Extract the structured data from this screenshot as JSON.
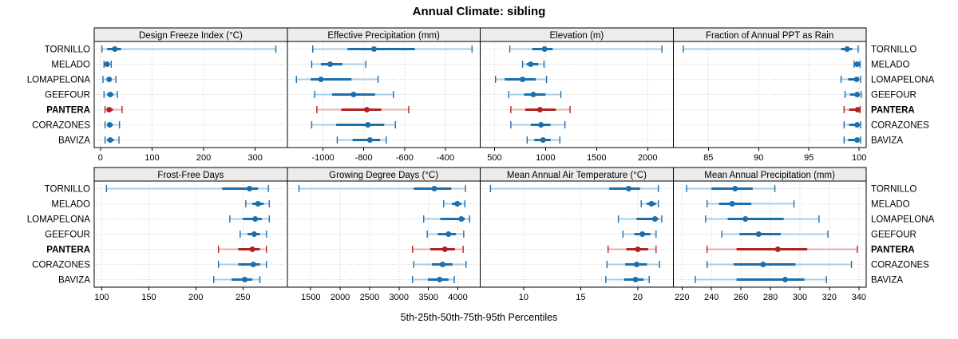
{
  "title": "Annual Climate: sibling",
  "caption": "5th-25th-50th-75th-95th Percentiles",
  "colors": {
    "normal": "#1c6fad",
    "normal_light": "#a9cde5",
    "highlight": "#b22222",
    "highlight_light": "#e3b2ae",
    "grid": "#c9c9c9",
    "header_bg": "#ececec",
    "border": "#000000",
    "background": "#ffffff"
  },
  "sites": [
    {
      "name": "TORNILLO",
      "highlight": false
    },
    {
      "name": "MELADO",
      "highlight": false
    },
    {
      "name": "LOMAPELONA",
      "highlight": false
    },
    {
      "name": "GEEFOUR",
      "highlight": false
    },
    {
      "name": "PANTERA",
      "highlight": true
    },
    {
      "name": "CORAZONES",
      "highlight": false
    },
    {
      "name": "BAVIZA",
      "highlight": false
    }
  ],
  "percentile_labels": [
    "5th",
    "25th",
    "50th",
    "75th",
    "95th"
  ],
  "chart_data": [
    {
      "type": "interval-dotplot",
      "title": "Design Freeze Index (°C)",
      "row": 0,
      "col": 0,
      "xlim": [
        -12,
        362
      ],
      "ticks": [
        0,
        100,
        200,
        300
      ],
      "categories": [
        "TORNILLO",
        "MELADO",
        "LOMAPELONA",
        "GEEFOUR",
        "PANTERA",
        "CORAZONES",
        "BAVIZA"
      ],
      "values": [
        [
          3,
          13,
          28,
          40,
          340
        ],
        [
          7,
          10,
          13,
          17,
          21
        ],
        [
          5,
          12,
          17,
          22,
          30
        ],
        [
          7,
          13,
          19,
          25,
          33
        ],
        [
          9,
          13,
          17,
          24,
          42
        ],
        [
          9,
          13,
          18,
          24,
          37
        ],
        [
          9,
          13,
          19,
          26,
          36
        ]
      ]
    },
    {
      "type": "interval-dotplot",
      "title": "Effective Precipitation (mm)",
      "row": 0,
      "col": 1,
      "xlim": [
        -1175,
        -230
      ],
      "ticks": [
        -1000,
        -800,
        -600,
        -400
      ],
      "categories": [
        "TORNILLO",
        "MELADO",
        "LOMAPELONA",
        "GEEFOUR",
        "PANTERA",
        "CORAZONES",
        "BAVIZA"
      ],
      "values": [
        [
          -1050,
          -880,
          -750,
          -550,
          -270
        ],
        [
          -1055,
          -1010,
          -965,
          -905,
          -790
        ],
        [
          -1130,
          -1060,
          -1010,
          -860,
          -730
        ],
        [
          -1040,
          -955,
          -850,
          -745,
          -655
        ],
        [
          -1030,
          -910,
          -785,
          -715,
          -580
        ],
        [
          -1055,
          -935,
          -780,
          -700,
          -645
        ],
        [
          -930,
          -855,
          -770,
          -720,
          -690
        ]
      ]
    },
    {
      "type": "interval-dotplot",
      "title": "Elevation (m)",
      "row": 0,
      "col": 2,
      "xlim": [
        360,
        2250
      ],
      "ticks": [
        500,
        1000,
        1500,
        2000
      ],
      "categories": [
        "TORNILLO",
        "MELADO",
        "LOMAPELONA",
        "GEEFOUR",
        "PANTERA",
        "CORAZONES",
        "BAVIZA"
      ],
      "values": [
        [
          650,
          870,
          990,
          1070,
          2140
        ],
        [
          775,
          815,
          855,
          930,
          985
        ],
        [
          510,
          600,
          775,
          905,
          1010
        ],
        [
          640,
          790,
          880,
          1000,
          1150
        ],
        [
          660,
          800,
          945,
          1100,
          1240
        ],
        [
          660,
          855,
          955,
          1050,
          1190
        ],
        [
          820,
          890,
          975,
          1050,
          1140
        ]
      ]
    },
    {
      "type": "interval-dotplot",
      "title": "Fraction of Annual PPT as Rain",
      "row": 0,
      "col": 3,
      "xlim": [
        81.5,
        100.7
      ],
      "ticks": [
        85,
        90,
        95,
        100
      ],
      "categories": [
        "TORNILLO",
        "MELADO",
        "LOMAPELONA",
        "GEEFOUR",
        "PANTERA",
        "CORAZONES",
        "BAVIZA"
      ],
      "values": [
        [
          82.5,
          98.2,
          98.8,
          99.3,
          99.9
        ],
        [
          99.5,
          99.65,
          99.8,
          99.95,
          100.1
        ],
        [
          98.2,
          98.9,
          99.75,
          99.95,
          100.15
        ],
        [
          98.6,
          99.1,
          99.8,
          100.0,
          100.2
        ],
        [
          98.5,
          99.0,
          99.85,
          100.0,
          100.1
        ],
        [
          98.5,
          99.0,
          99.8,
          100.0,
          100.15
        ],
        [
          98.5,
          98.9,
          99.8,
          100.0,
          100.15
        ]
      ]
    },
    {
      "type": "interval-dotplot",
      "title": "Frost-Free Days",
      "row": 1,
      "col": 0,
      "xlim": [
        92,
        297
      ],
      "ticks": [
        100,
        150,
        200,
        250
      ],
      "categories": [
        "TORNILLO",
        "MELADO",
        "LOMAPELONA",
        "GEEFOUR",
        "PANTERA",
        "CORAZONES",
        "BAVIZA"
      ],
      "values": [
        [
          105,
          228,
          257,
          266,
          277
        ],
        [
          253,
          260,
          266,
          272,
          278
        ],
        [
          236,
          250,
          263,
          270,
          278
        ],
        [
          247,
          255,
          262,
          268,
          275
        ],
        [
          224,
          245,
          260,
          268,
          275
        ],
        [
          224,
          245,
          261,
          268,
          275
        ],
        [
          219,
          238,
          252,
          260,
          268
        ]
      ]
    },
    {
      "type": "interval-dotplot",
      "title": "Growing Degree Days (°C)",
      "row": 1,
      "col": 1,
      "xlim": [
        1100,
        4380
      ],
      "ticks": [
        1500,
        2000,
        2500,
        3000,
        3500,
        4000
      ],
      "categories": [
        "TORNILLO",
        "MELADO",
        "LOMAPELONA",
        "GEEFOUR",
        "PANTERA",
        "CORAZONES",
        "BAVIZA"
      ],
      "values": [
        [
          1300,
          3250,
          3600,
          3890,
          4130
        ],
        [
          3760,
          3900,
          3990,
          4060,
          4120
        ],
        [
          3420,
          3700,
          4060,
          4120,
          4200
        ],
        [
          3480,
          3660,
          3840,
          3970,
          4100
        ],
        [
          3230,
          3530,
          3780,
          3950,
          4090
        ],
        [
          3250,
          3560,
          3740,
          3910,
          4140
        ],
        [
          3230,
          3490,
          3690,
          3840,
          3940
        ]
      ]
    },
    {
      "type": "interval-dotplot",
      "title": "Mean Annual Air Temperature (°C)",
      "row": 1,
      "col": 2,
      "xlim": [
        6.2,
        23.1
      ],
      "ticks": [
        10,
        15,
        20
      ],
      "categories": [
        "TORNILLO",
        "MELADO",
        "LOMAPELONA",
        "GEEFOUR",
        "PANTERA",
        "CORAZONES",
        "BAVIZA"
      ],
      "values": [
        [
          7.1,
          17.5,
          19.2,
          20.2,
          21.8
        ],
        [
          20.3,
          20.8,
          21.2,
          21.6,
          21.8
        ],
        [
          18.3,
          19.9,
          21.5,
          21.8,
          22.1
        ],
        [
          18.7,
          19.7,
          20.4,
          21.1,
          21.6
        ],
        [
          17.4,
          19.0,
          20.0,
          20.9,
          21.6
        ],
        [
          17.3,
          18.9,
          19.9,
          20.8,
          21.9
        ],
        [
          17.2,
          18.8,
          19.8,
          20.5,
          21.0
        ]
      ]
    },
    {
      "type": "interval-dotplot",
      "title": "Mean Annual Precipitation (mm)",
      "row": 1,
      "col": 3,
      "xlim": [
        214,
        345
      ],
      "ticks": [
        220,
        240,
        260,
        280,
        300,
        320,
        340
      ],
      "categories": [
        "TORNILLO",
        "MELADO",
        "LOMAPELONA",
        "GEEFOUR",
        "PANTERA",
        "CORAZONES",
        "BAVIZA"
      ],
      "values": [
        [
          223,
          240,
          256,
          268,
          283
        ],
        [
          237,
          245,
          254,
          267,
          296
        ],
        [
          236,
          251,
          263,
          289,
          313
        ],
        [
          247,
          259,
          272,
          287,
          319
        ],
        [
          237,
          257,
          285,
          305,
          339
        ],
        [
          237,
          255,
          275,
          297,
          335
        ],
        [
          229,
          257,
          290,
          303,
          318
        ]
      ]
    }
  ]
}
